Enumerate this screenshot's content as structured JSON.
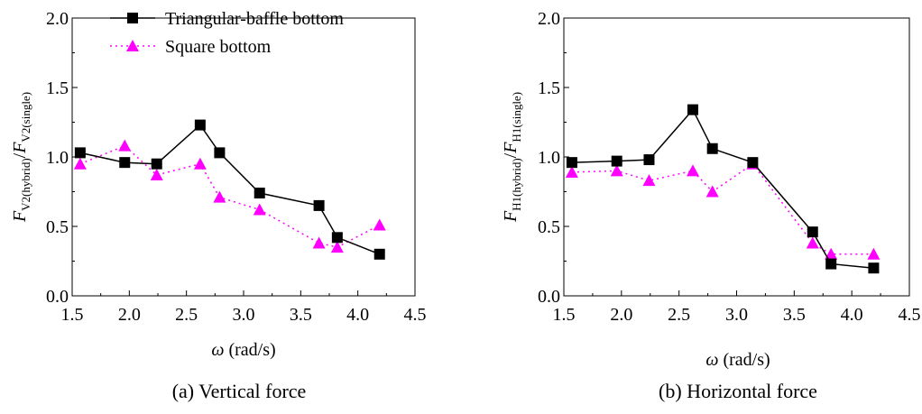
{
  "chart_data": [
    {
      "type": "line",
      "caption": "(a) Vertical  force",
      "xlabel_symbol": "ω",
      "xlabel_unit": "(rad/s)",
      "ylabel_num_sym": "F",
      "ylabel_num_sub": "V2(hybrid)",
      "ylabel_slash": "/",
      "ylabel_den_sym": "F",
      "ylabel_den_sub": "V2(single)",
      "xlim": [
        1.5,
        4.5
      ],
      "ylim": [
        0.0,
        2.0
      ],
      "xticks": [
        "1.5",
        "2.0",
        "2.5",
        "3.0",
        "3.5",
        "4.0",
        "4.5"
      ],
      "yticks": [
        "0.0",
        "0.5",
        "1.0",
        "1.5",
        "2.0"
      ],
      "legend": "top-left",
      "grid": false,
      "series": [
        {
          "name": "Triangular-baffle bottom",
          "color": "#000000",
          "marker": "square",
          "line": "solid",
          "x": [
            1.57,
            1.96,
            2.24,
            2.62,
            2.79,
            3.14,
            3.66,
            3.82,
            4.19
          ],
          "y": [
            1.03,
            0.96,
            0.95,
            1.23,
            1.03,
            0.74,
            0.65,
            0.42,
            0.3
          ]
        },
        {
          "name": "Square bottom",
          "color": "#ff00ff",
          "marker": "triangle",
          "line": "dotted",
          "x": [
            1.57,
            1.96,
            2.24,
            2.62,
            2.79,
            3.14,
            3.66,
            3.82,
            4.19
          ],
          "y": [
            0.95,
            1.08,
            0.87,
            0.95,
            0.71,
            0.62,
            0.38,
            0.35,
            0.51
          ]
        }
      ]
    },
    {
      "type": "line",
      "caption": "(b) Horizontal force",
      "xlabel_symbol": "ω",
      "xlabel_unit": "(rad/s)",
      "ylabel_num_sym": "F",
      "ylabel_num_sub": "H1(hybrid)",
      "ylabel_slash": "/",
      "ylabel_den_sym": "F",
      "ylabel_den_sub": "H1(single)",
      "xlim": [
        1.5,
        4.5
      ],
      "ylim": [
        0.0,
        2.0
      ],
      "xticks": [
        "1.5",
        "2.0",
        "2.5",
        "3.0",
        "3.5",
        "4.0",
        "4.5"
      ],
      "yticks": [
        "0.0",
        "0.5",
        "1.0",
        "1.5",
        "2.0"
      ],
      "grid": false,
      "series": [
        {
          "color": "#000000",
          "marker": "square",
          "line": "solid",
          "x": [
            1.57,
            1.96,
            2.24,
            2.62,
            2.79,
            3.14,
            3.66,
            3.82,
            4.19
          ],
          "y": [
            0.96,
            0.97,
            0.98,
            1.34,
            1.06,
            0.96,
            0.46,
            0.23,
            0.2
          ]
        },
        {
          "color": "#ff00ff",
          "marker": "triangle",
          "line": "dotted",
          "x": [
            1.57,
            1.96,
            2.24,
            2.62,
            2.79,
            3.14,
            3.66,
            3.82,
            4.19
          ],
          "y": [
            0.89,
            0.9,
            0.83,
            0.9,
            0.75,
            0.95,
            0.38,
            0.3,
            0.3
          ]
        }
      ]
    }
  ]
}
